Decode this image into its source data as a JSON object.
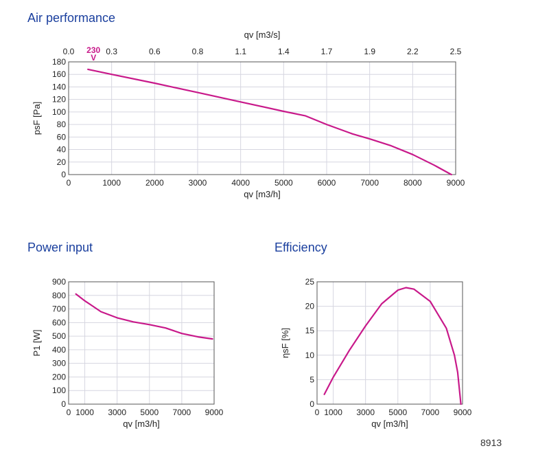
{
  "titles": {
    "air": "Air performance",
    "power": "Power input",
    "efficiency": "Efficiency"
  },
  "footer_code": "8913",
  "curve_color": "#c8198a",
  "title_color": "#1a3f9e",
  "chart_data": [
    {
      "type": "line",
      "id": "air",
      "title": "Air performance",
      "xlabel": "qv [m3/h]",
      "ylabel": "psF [Pa]",
      "xlim": [
        0,
        9000
      ],
      "ylim": [
        0,
        180
      ],
      "xticks": [
        0,
        1000,
        2000,
        3000,
        4000,
        5000,
        6000,
        7000,
        8000,
        9000
      ],
      "yticks": [
        0,
        20,
        40,
        60,
        80,
        100,
        120,
        140,
        160,
        180
      ],
      "top_axis": {
        "label": "qv [m3/s]",
        "ticks": [
          "0.0",
          "0.3",
          "0.6",
          "0.8",
          "1.1",
          "1.4",
          "1.7",
          "1.9",
          "2.2",
          "2.5"
        ]
      },
      "curve_label": "230\nV",
      "series": [
        {
          "name": "230 V",
          "x": [
            450,
            1000,
            2000,
            3000,
            4000,
            5000,
            5500,
            6000,
            6600,
            7000,
            7500,
            8000,
            8500,
            8900
          ],
          "y": [
            168,
            160,
            146,
            131,
            116,
            101,
            94,
            80,
            65,
            57,
            46,
            32,
            15,
            0
          ]
        }
      ]
    },
    {
      "type": "line",
      "id": "power",
      "title": "Power input",
      "xlabel": "qv [m3/h]",
      "ylabel": "P1 [W]",
      "xlim": [
        0,
        9000
      ],
      "ylim": [
        0,
        900
      ],
      "xticks": [
        0,
        1000,
        3000,
        5000,
        7000,
        9000
      ],
      "yticks": [
        0,
        100,
        200,
        300,
        400,
        500,
        600,
        700,
        800,
        900
      ],
      "series": [
        {
          "name": "230 V",
          "x": [
            450,
            1000,
            2000,
            3000,
            4000,
            5000,
            6000,
            7000,
            8000,
            8900
          ],
          "y": [
            810,
            760,
            680,
            635,
            605,
            585,
            560,
            520,
            495,
            480
          ]
        }
      ]
    },
    {
      "type": "line",
      "id": "efficiency",
      "title": "Efficiency",
      "xlabel": "qv [m3/h]",
      "ylabel": "ηsF [%]",
      "xlim": [
        0,
        9000
      ],
      "ylim": [
        0,
        25
      ],
      "xticks": [
        0,
        1000,
        3000,
        5000,
        7000,
        9000
      ],
      "yticks": [
        0,
        5,
        10,
        15,
        20,
        25
      ],
      "series": [
        {
          "name": "230 V",
          "x": [
            450,
            1000,
            2000,
            3000,
            4000,
            5000,
            5500,
            6000,
            7000,
            8000,
            8500,
            8700,
            8900
          ],
          "y": [
            2.0,
            5.5,
            11.0,
            16.0,
            20.5,
            23.3,
            23.8,
            23.5,
            21.0,
            15.5,
            10.0,
            6.5,
            0.0
          ]
        }
      ]
    }
  ]
}
